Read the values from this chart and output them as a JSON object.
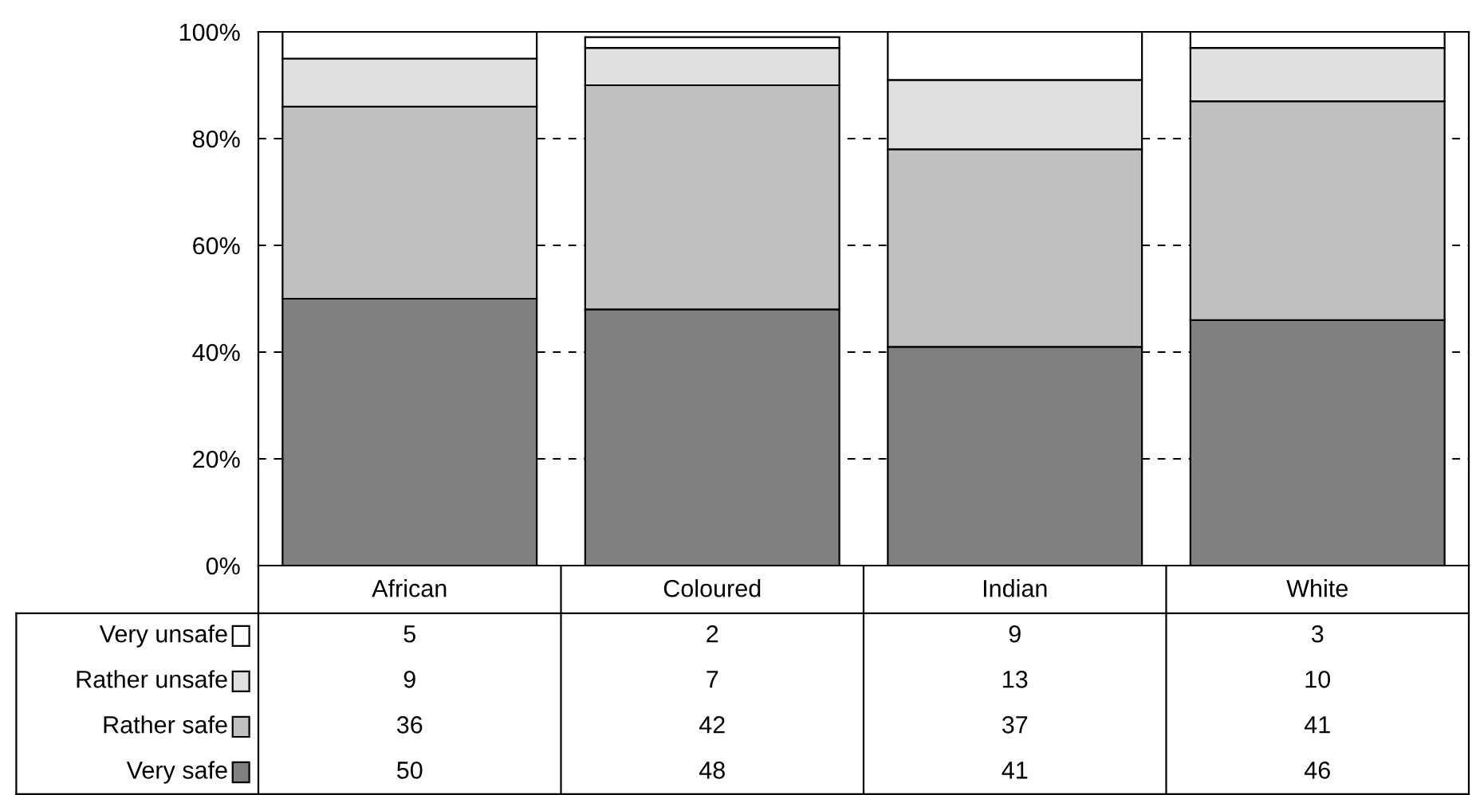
{
  "chart_data": {
    "type": "bar",
    "stacked": true,
    "categories": [
      "African",
      "Coloured",
      "Indian",
      "White"
    ],
    "series": [
      {
        "name": "Very safe",
        "color": "#808080",
        "values": [
          50,
          48,
          41,
          46
        ]
      },
      {
        "name": "Rather safe",
        "color": "#c0c0c0",
        "values": [
          36,
          42,
          37,
          41
        ]
      },
      {
        "name": "Rather unsafe",
        "color": "#e0e0e0",
        "values": [
          9,
          7,
          13,
          10
        ]
      },
      {
        "name": "Very unsafe",
        "color": "#ffffff",
        "values": [
          5,
          2,
          9,
          3
        ]
      }
    ],
    "ylim": [
      0,
      100
    ],
    "yticks": [
      {
        "value": 0,
        "label": "0%"
      },
      {
        "value": 20,
        "label": "20%"
      },
      {
        "value": 40,
        "label": "40%"
      },
      {
        "value": 60,
        "label": "60%"
      },
      {
        "value": 80,
        "label": "80%"
      },
      {
        "value": 100,
        "label": "100%"
      }
    ],
    "grid": "y",
    "line_style": "dashed",
    "data_labels": true,
    "legend": "bottom left"
  }
}
